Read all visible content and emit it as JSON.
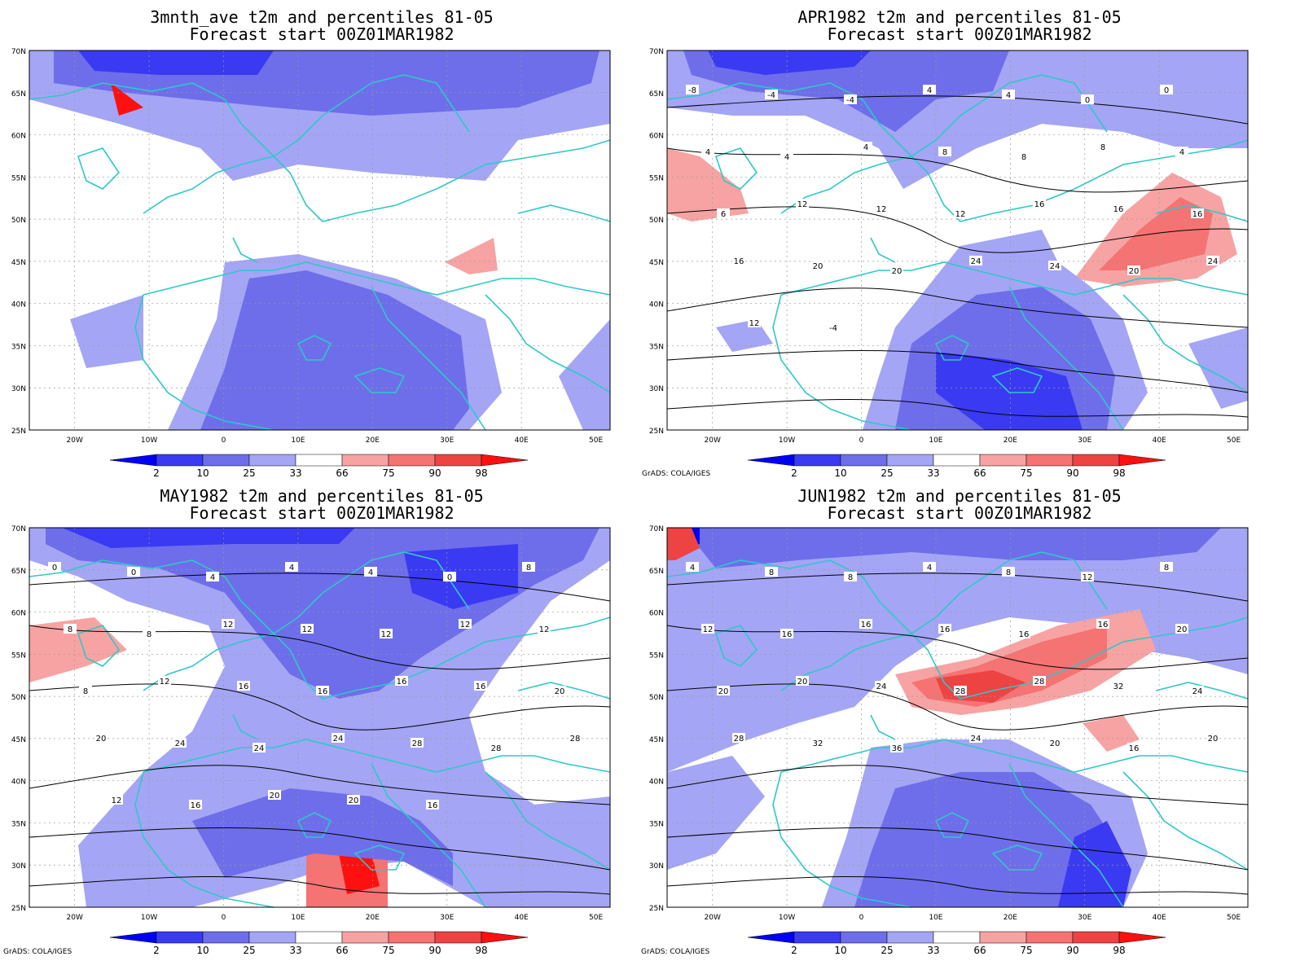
{
  "panels": [
    {
      "title_line1": "3mnth_ave t2m and percentiles 81-05",
      "title_line2": "Forecast start 00Z01MAR1982",
      "credit": "",
      "red_spots": [],
      "contours": []
    },
    {
      "title_line1": "APR1982 t2m and percentiles 81-05",
      "title_line2": "Forecast start 00Z01MAR1982",
      "credit": "GrADS: COLA/IGES",
      "contours": [
        "-8",
        "-4",
        "-4",
        "4",
        "4",
        "0",
        "0",
        "4",
        "4",
        "4",
        "8",
        "8",
        "8",
        "4",
        "6",
        "12",
        "12",
        "12",
        "16",
        "16",
        "16",
        "16",
        "20",
        "20",
        "24",
        "24",
        "20",
        "24",
        "12",
        "-4"
      ]
    },
    {
      "title_line1": "MAY1982 t2m and percentiles 81-05",
      "title_line2": "Forecast start 00Z01MAR1982",
      "credit": "GrADS: COLA/IGES",
      "contours": [
        "0",
        "0",
        "4",
        "4",
        "4",
        "0",
        "8",
        "8",
        "8",
        "12",
        "12",
        "12",
        "12",
        "12",
        "8",
        "12",
        "16",
        "16",
        "16",
        "16",
        "20",
        "20",
        "24",
        "24",
        "24",
        "28",
        "28",
        "28",
        "12",
        "16",
        "20",
        "20",
        "16"
      ]
    },
    {
      "title_line1": "JUN1982 t2m and percentiles 81-05",
      "title_line2": "Forecast start 00Z01MAR1982",
      "credit": "GrADS: COLA/IGES",
      "contours": [
        "4",
        "8",
        "8",
        "4",
        "8",
        "12",
        "8",
        "12",
        "16",
        "16",
        "16",
        "16",
        "16",
        "20",
        "20",
        "20",
        "24",
        "28",
        "28",
        "32",
        "24",
        "28",
        "32",
        "36",
        "24",
        "20",
        "16",
        "20"
      ]
    }
  ],
  "map": {
    "lat_labels": [
      "70N",
      "65N",
      "60N",
      "55N",
      "50N",
      "45N",
      "40N",
      "35N",
      "30N",
      "25N"
    ],
    "lon_labels": [
      "20W",
      "10W",
      "0",
      "10E",
      "20E",
      "30E",
      "40E",
      "50E"
    ]
  },
  "colorbar": {
    "labels": [
      "2",
      "10",
      "25",
      "33",
      "66",
      "75",
      "90",
      "98"
    ],
    "colors": [
      "#0000f2",
      "#3a3af2",
      "#6e6eeb",
      "#a5a5f5",
      "#ffffff",
      "#f7a3a3",
      "#f57373",
      "#ed4343",
      "#ff1010"
    ]
  }
}
